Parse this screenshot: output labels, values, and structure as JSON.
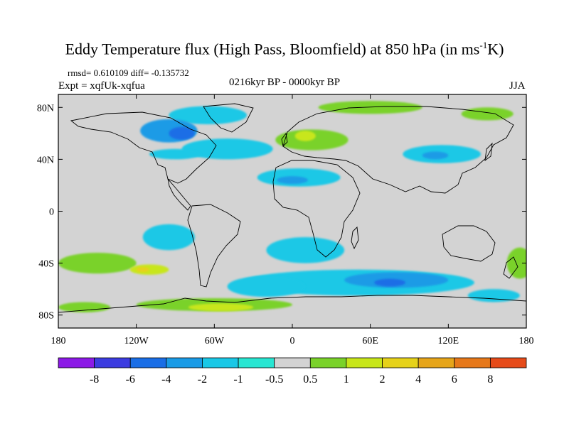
{
  "title": {
    "main": "Eddy Temperature flux (High Pass, Bloomfield) at 850 hPa (in ms",
    "superscript": "-1",
    "suffix": "K)"
  },
  "stats": "rmsd= 0.610109 diff= -0.135732",
  "experiment": "Expt = xqfUk-xqfua",
  "period": "0216kyr BP - 0000kyr BP",
  "season": "JJA",
  "map": {
    "background_color": "#d3d3d3",
    "lon_range": [
      -180,
      180
    ],
    "lat_range": [
      -90,
      90
    ],
    "lat_ticks": [
      {
        "value": 80,
        "label": "80N"
      },
      {
        "value": 40,
        "label": "40N"
      },
      {
        "value": 0,
        "label": "0"
      },
      {
        "value": -40,
        "label": "40S"
      },
      {
        "value": -80,
        "label": "80S"
      }
    ],
    "lon_ticks": [
      {
        "value": -180,
        "label": "180"
      },
      {
        "value": -120,
        "label": "120W"
      },
      {
        "value": -60,
        "label": "60W"
      },
      {
        "value": 0,
        "label": "0"
      },
      {
        "value": 60,
        "label": "60E"
      },
      {
        "value": 120,
        "label": "120E"
      },
      {
        "value": 180,
        "label": "180"
      }
    ],
    "contour_regions": [
      {
        "name": "greenland-low",
        "level": -1,
        "lon": -65,
        "lat": 74,
        "rlon": 30,
        "rlat": 7
      },
      {
        "name": "canada-low",
        "level": -2,
        "lon": -95,
        "lat": 62,
        "rlon": 22,
        "rlat": 9
      },
      {
        "name": "hudson-low",
        "level": -4,
        "lon": -85,
        "lat": 60,
        "rlon": 10,
        "rlat": 5
      },
      {
        "name": "north-atlantic-low",
        "level": -1,
        "lon": -50,
        "lat": 48,
        "rlon": 35,
        "rlat": 8
      },
      {
        "name": "us-low",
        "level": -1,
        "lon": -90,
        "lat": 44,
        "rlon": 20,
        "rlat": 4
      },
      {
        "name": "mediterranean-low",
        "level": -1,
        "lon": 5,
        "lat": 26,
        "rlon": 32,
        "rlat": 7
      },
      {
        "name": "mediterranean-core",
        "level": -2,
        "lon": 0,
        "lat": 24,
        "rlon": 12,
        "rlat": 3
      },
      {
        "name": "europe-high",
        "level": 1,
        "lon": 15,
        "lat": 55,
        "rlon": 28,
        "rlat": 8
      },
      {
        "name": "scandinavia-high",
        "level": 2,
        "lon": 10,
        "lat": 58,
        "rlon": 8,
        "rlat": 4
      },
      {
        "name": "arctic-siberia-high",
        "level": 1,
        "lon": 60,
        "lat": 80,
        "rlon": 40,
        "rlat": 5
      },
      {
        "name": "east-asia-low",
        "level": -1,
        "lon": 115,
        "lat": 44,
        "rlon": 30,
        "rlat": 7
      },
      {
        "name": "east-asia-core",
        "level": -2,
        "lon": 110,
        "lat": 43,
        "rlon": 10,
        "rlat": 3
      },
      {
        "name": "pacific-west-high",
        "level": 1,
        "lon": 150,
        "lat": 75,
        "rlon": 20,
        "rlat": 5
      },
      {
        "name": "south-atlantic-low",
        "level": -1,
        "lon": 10,
        "lat": -30,
        "rlon": 30,
        "rlat": 10
      },
      {
        "name": "south-pacific-low",
        "level": -1,
        "lon": -95,
        "lat": -20,
        "rlon": 20,
        "rlat": 10
      },
      {
        "name": "southern-ocean-low",
        "level": -1,
        "lon": 50,
        "lat": -55,
        "rlon": 90,
        "rlat": 10
      },
      {
        "name": "southern-ocean-mid",
        "level": -2,
        "lon": 80,
        "lat": -53,
        "rlon": 40,
        "rlat": 6
      },
      {
        "name": "southern-ocean-core",
        "level": -4,
        "lon": 75,
        "lat": -55,
        "rlon": 12,
        "rlat": 3
      },
      {
        "name": "south-atlantic-far-low",
        "level": -1,
        "lon": -20,
        "lat": -58,
        "rlon": 30,
        "rlat": 8
      },
      {
        "name": "south-pacific-high",
        "level": 1,
        "lon": -150,
        "lat": -40,
        "rlon": 30,
        "rlat": 8
      },
      {
        "name": "south-pacific-high-core",
        "level": 2,
        "lon": -110,
        "lat": -45,
        "rlon": 15,
        "rlat": 4
      },
      {
        "name": "south-pacific-peak",
        "level": 4,
        "lon": -115,
        "lat": -45,
        "rlon": 5,
        "rlat": 2
      },
      {
        "name": "antarctic-coast-high",
        "level": 1,
        "lon": -60,
        "lat": -72,
        "rlon": 60,
        "rlat": 5
      },
      {
        "name": "antarctic-coast-core",
        "level": 2,
        "lon": -55,
        "lat": -74,
        "rlon": 25,
        "rlat": 3
      },
      {
        "name": "ross-sea-high",
        "level": 1,
        "lon": -160,
        "lat": -74,
        "rlon": 20,
        "rlat": 4
      },
      {
        "name": "tasman-high",
        "level": 1,
        "lon": 175,
        "lat": -40,
        "rlon": 10,
        "rlat": 12
      },
      {
        "name": "southern-ocean-east-low",
        "level": -1,
        "lon": 155,
        "lat": -65,
        "rlon": 20,
        "rlat": 5
      }
    ]
  },
  "colorbar": {
    "colors": [
      "#8c1ae6",
      "#3c3ce0",
      "#1a6ee6",
      "#1a9be6",
      "#1ac8e6",
      "#28e6d2",
      "#d3d3d3",
      "#7ad22a",
      "#c8e61a",
      "#e6d21a",
      "#e6a51a",
      "#e6781a",
      "#e64b1a"
    ],
    "labels": [
      "-8",
      "-6",
      "-4",
      "-2",
      "-1",
      "-0.5",
      "0.5",
      "1",
      "2",
      "4",
      "6",
      "8"
    ]
  }
}
